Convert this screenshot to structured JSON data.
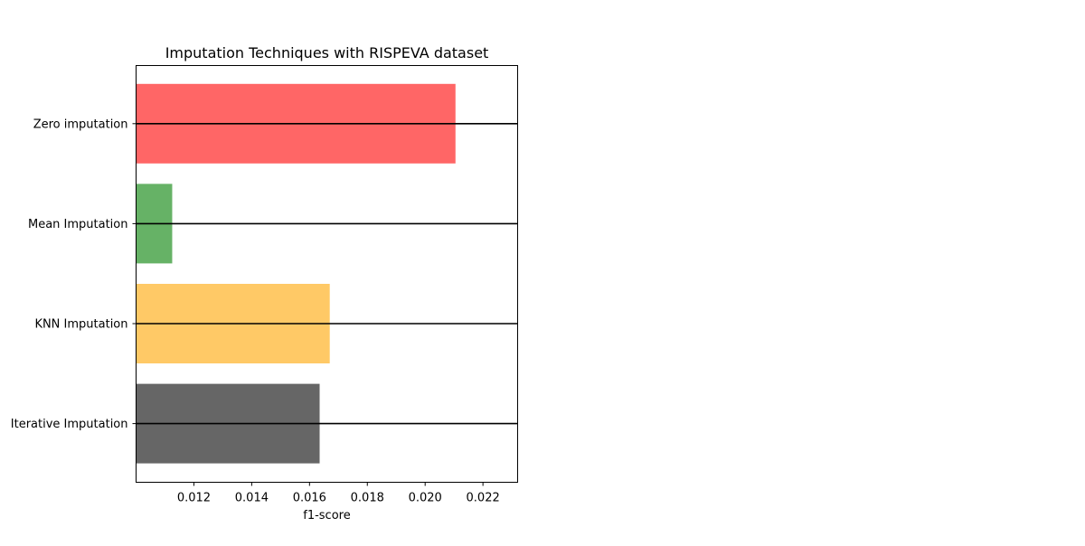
{
  "chart_data": {
    "type": "bar",
    "orientation": "horizontal",
    "title": "Imputation Techniques with RISPEVA dataset",
    "xlabel": "f1-score",
    "ylabel": "",
    "categories": [
      "Zero imputation",
      "Mean Imputation",
      "KNN Imputation",
      "Iterative Imputation"
    ],
    "values": [
      0.02105,
      0.01125,
      0.0167,
      0.01635
    ],
    "colors": [
      "#ff6666",
      "#66b266",
      "#ffc966",
      "#666666"
    ],
    "xlim": [
      0.01,
      0.0232
    ],
    "xticks": [
      0.012,
      0.014,
      0.016,
      0.018,
      0.02,
      0.022
    ],
    "xtick_labels": [
      "0.012",
      "0.014",
      "0.016",
      "0.018",
      "0.020",
      "0.022"
    ],
    "grid": "horizontal lines at category positions",
    "grid_color": "#000000",
    "legend": "none"
  }
}
